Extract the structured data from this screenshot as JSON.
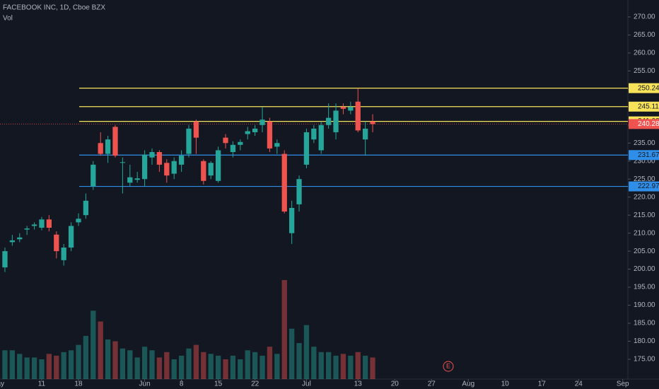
{
  "chart_data": {
    "type": "candlestick",
    "title": "FACEBOOK INC, 1D, Cboe BZX",
    "volume_label": "Vol",
    "earnings_label": "E",
    "up_color": "#26a69a",
    "down_color": "#ef5350",
    "open": [
      200.5,
      207.5,
      208.3,
      211,
      212,
      211.5,
      213.8,
      209.6,
      202.5,
      206,
      213,
      215,
      223,
      235,
      232,
      239.5,
      229.5,
      224,
      224.8,
      225,
      231,
      232.5,
      229.5,
      226.5,
      229,
      232,
      241,
      230,
      226,
      224.5,
      236.5,
      232.5,
      234.5,
      237.5,
      238,
      240,
      241,
      234,
      232,
      210,
      218,
      229,
      236,
      233,
      240,
      238,
      245,
      244,
      246.5,
      236,
      241
    ],
    "high": [
      206,
      209.5,
      210,
      212,
      213,
      214.5,
      215,
      210.5,
      207,
      213,
      215.5,
      221,
      230,
      238,
      237,
      240,
      231,
      229,
      227,
      233,
      233.5,
      233,
      230.5,
      231,
      233,
      240,
      241.5,
      230.5,
      230,
      234,
      237.5,
      235.5,
      236,
      239.5,
      240,
      245,
      242,
      236,
      233,
      219,
      226,
      239,
      240,
      241,
      246,
      246,
      246,
      246.5,
      250.2,
      241,
      243
    ],
    "low": [
      199.2,
      206.5,
      207.5,
      209.5,
      211,
      210.8,
      210.5,
      203,
      201,
      205,
      212,
      214,
      222,
      231.5,
      229.5,
      231,
      221,
      223,
      224,
      223,
      229,
      227,
      224,
      225,
      227,
      231,
      232,
      223.5,
      225,
      224,
      233.5,
      231,
      233,
      236,
      237,
      238,
      232.5,
      232,
      215.5,
      207,
      216,
      228,
      235,
      232,
      239,
      236,
      243,
      243,
      238,
      231.5,
      238
    ],
    "close": [
      205,
      208,
      208.8,
      211.3,
      212.4,
      213.8,
      211.5,
      205,
      206,
      212,
      214,
      219,
      229,
      232,
      236,
      231.5,
      229.7,
      225.5,
      225.2,
      231.8,
      232.5,
      229,
      226,
      230,
      231.5,
      239,
      236.5,
      224.5,
      229.5,
      233,
      235,
      234.5,
      235.3,
      238.3,
      239,
      241.5,
      233.5,
      235,
      216,
      217,
      225,
      238,
      239,
      240,
      242,
      244,
      244.5,
      245,
      238.5,
      239,
      240.28
    ],
    "volume": [
      16,
      16,
      14,
      12,
      12,
      11,
      14,
      13,
      15,
      16,
      19,
      24,
      38,
      32,
      22,
      21,
      17,
      16,
      12,
      18,
      16,
      12,
      15,
      11,
      13,
      17,
      19,
      15,
      14,
      13,
      11,
      13,
      11,
      16,
      15,
      13,
      18,
      14,
      55,
      28,
      20,
      30,
      18,
      15,
      15,
      13,
      14,
      13,
      15,
      13,
      12
    ],
    "ylim": [
      169.5,
      274.7
    ],
    "yticks": [
      {
        "value": 175,
        "label": "175.00"
      },
      {
        "value": 180,
        "label": "180.00"
      },
      {
        "value": 185,
        "label": "185.00"
      },
      {
        "value": 190,
        "label": "190.00"
      },
      {
        "value": 195,
        "label": "195.00"
      },
      {
        "value": 200,
        "label": "200.00"
      },
      {
        "value": 205,
        "label": "205.00"
      },
      {
        "value": 210,
        "label": "210.00"
      },
      {
        "value": 215,
        "label": "215.00"
      },
      {
        "value": 220,
        "label": "220.00"
      },
      {
        "value": 225,
        "label": "225.00"
      },
      {
        "value": 230,
        "label": "230.00"
      },
      {
        "value": 235,
        "label": "235.00"
      },
      {
        "value": 240,
        "label": "240.00"
      },
      {
        "value": 245,
        "label": "245.00"
      },
      {
        "value": 250,
        "label": "250.00"
      },
      {
        "value": 255,
        "label": "255.00"
      },
      {
        "value": 260,
        "label": "260.00"
      },
      {
        "value": 265,
        "label": "265.00"
      },
      {
        "value": 270,
        "label": "270.00"
      }
    ],
    "xlim": [
      -0.67,
      84.7
    ],
    "xticks": [
      {
        "value": -1,
        "label": "May"
      },
      {
        "value": 5,
        "label": "11"
      },
      {
        "value": 10,
        "label": "18"
      },
      {
        "value": 19,
        "label": "Jun"
      },
      {
        "value": 24,
        "label": "8"
      },
      {
        "value": 29,
        "label": "15"
      },
      {
        "value": 34,
        "label": "22"
      },
      {
        "value": 41,
        "label": "Jul"
      },
      {
        "value": 48,
        "label": "13"
      },
      {
        "value": 53,
        "label": "20"
      },
      {
        "value": 58,
        "label": "27"
      },
      {
        "value": 63,
        "label": "Aug"
      },
      {
        "value": 68,
        "label": "10"
      },
      {
        "value": 73,
        "label": "17"
      },
      {
        "value": 78,
        "label": "24"
      },
      {
        "value": 84,
        "label": "Sep"
      }
    ],
    "levels": [
      {
        "value": 250.24,
        "color": "#f7e35a"
      },
      {
        "value": 245.11,
        "color": "#f7e35a"
      },
      {
        "value": 241.02,
        "color": "#f7e35a"
      },
      {
        "value": 231.67,
        "color": "#2f8fe8"
      },
      {
        "value": 222.97,
        "color": "#2f8fe8"
      }
    ],
    "last_price": 240.28,
    "grid": false
  }
}
